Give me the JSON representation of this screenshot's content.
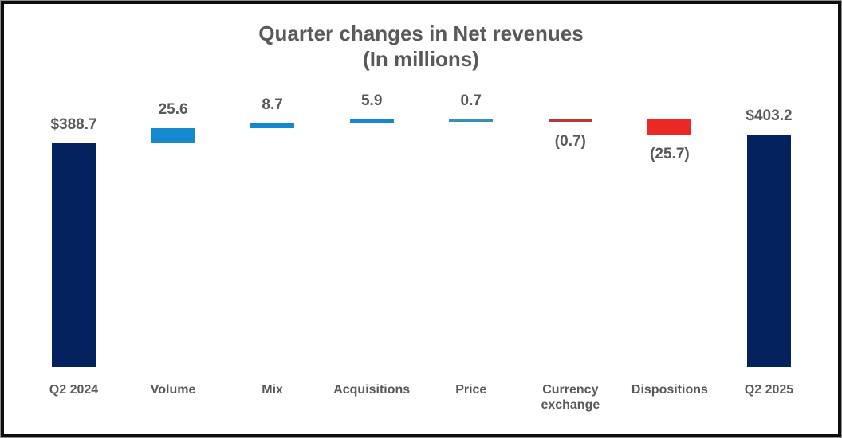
{
  "chart_data": {
    "type": "bar",
    "subtype": "waterfall",
    "title": "Quarter changes in Net revenues",
    "subtitle": "(In millions)",
    "orientation": "vertical",
    "grid": false,
    "legend": false,
    "axis_line": false,
    "text_color": "#58595b",
    "start_total": 388.7,
    "end_total": 403.2,
    "categories": [
      "Q2 2024",
      "Volume",
      "Mix",
      "Acquisitions",
      "Price",
      "Currency exchange",
      "Dispositions",
      "Q2 2025"
    ],
    "bars": [
      {
        "category": "Q2 2024",
        "value": 388.7,
        "display": "$388.7",
        "kind": "total",
        "color": "#04235e",
        "label_position": "above"
      },
      {
        "category": "Volume",
        "value": 25.6,
        "display": "25.6",
        "kind": "increase",
        "color": "#1489cf",
        "label_position": "above"
      },
      {
        "category": "Mix",
        "value": 8.7,
        "display": "8.7",
        "kind": "increase",
        "color": "#1489cf",
        "label_position": "above"
      },
      {
        "category": "Acquisitions",
        "value": 5.9,
        "display": "5.9",
        "kind": "increase",
        "color": "#1489cf",
        "label_position": "above"
      },
      {
        "category": "Price",
        "value": 0.7,
        "display": "0.7",
        "kind": "increase",
        "color": "#3790bc",
        "label_position": "above"
      },
      {
        "category": "Currency exchange",
        "value": -0.7,
        "display": "(0.7)",
        "kind": "decrease",
        "color": "#b23a33",
        "label_position": "below"
      },
      {
        "category": "Dispositions",
        "value": -25.7,
        "display": "(25.7)",
        "kind": "decrease",
        "color": "#ec2824",
        "label_position": "below"
      },
      {
        "category": "Q2 2025",
        "value": 403.2,
        "display": "$403.2",
        "kind": "total",
        "color": "#04235e",
        "label_position": "above"
      }
    ],
    "ylim": [
      0,
      460
    ]
  }
}
